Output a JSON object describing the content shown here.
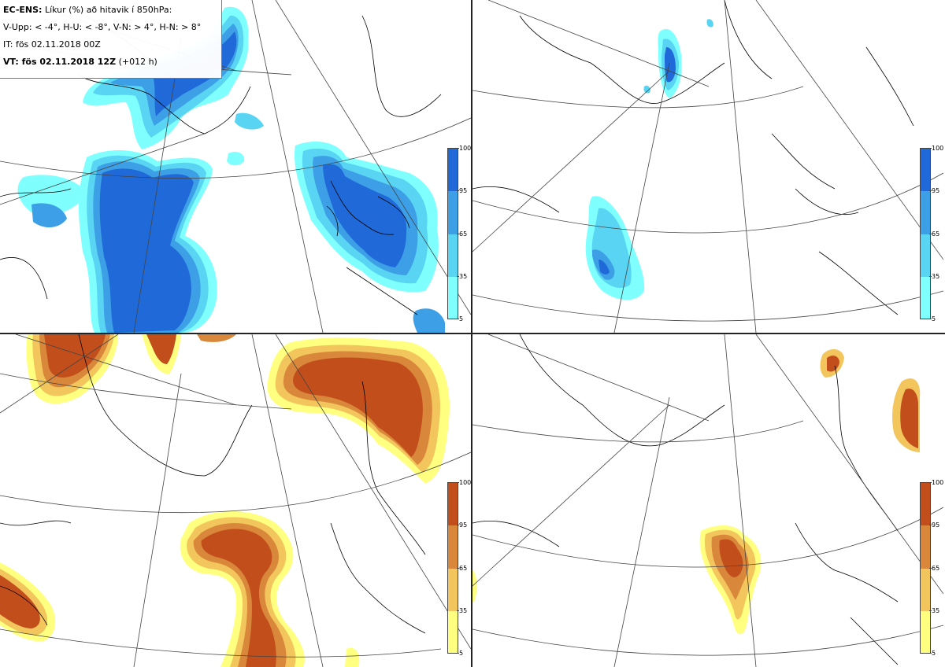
{
  "legend": {
    "model": "EC-ENS:",
    "title_rest": "Líkur (%) að hitavik í 850hPa:",
    "thresholds": "V-Upp: < -4°, H-U: < -8°, V-N: > 4°, H-N: > 8°",
    "init_time": "IT: fös 02.11.2018 00Z",
    "valid_prefix": "VT: fös 02.11.2018 12Z",
    "lead": "(+012 h)"
  },
  "colorbar": {
    "ticks": [
      "100",
      "95",
      "65",
      "35",
      "5"
    ]
  },
  "panels": [
    {
      "id": "cold-4",
      "palette": "blue"
    },
    {
      "id": "cold-8",
      "palette": "blue"
    },
    {
      "id": "warm-4",
      "palette": "orange"
    },
    {
      "id": "warm-8",
      "palette": "orange"
    }
  ],
  "palettes": {
    "blue": [
      "#80ffff",
      "#59d4f2",
      "#3d9fe6",
      "#1f6ad8"
    ],
    "orange": [
      "#ffff80",
      "#f2c65c",
      "#d9873a",
      "#c24e1c"
    ]
  },
  "colors": {
    "land_outline": "#000000",
    "graticule": "#444444",
    "frame": "#222222"
  }
}
